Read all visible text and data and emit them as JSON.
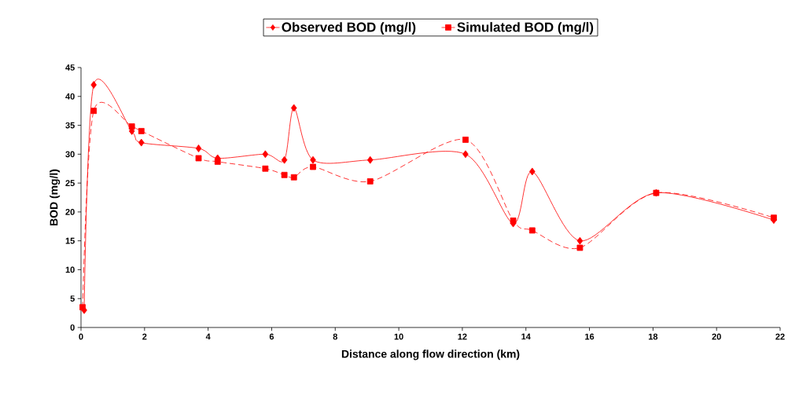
{
  "chart_data": {
    "type": "line",
    "xlabel": "Distance along flow direction (km)",
    "ylabel": "BOD (mg/l)",
    "xlim": [
      0,
      22
    ],
    "xticks": [
      0,
      2,
      4,
      6,
      8,
      10,
      12,
      14,
      16,
      18,
      20,
      22
    ],
    "ylim": [
      0,
      45
    ],
    "yticks": [
      0,
      5,
      10,
      15,
      20,
      25,
      30,
      35,
      40,
      45
    ],
    "legend": "top",
    "grid": false,
    "series": [
      {
        "name": "Observed BOD (mg/l)",
        "color": "#ff0000",
        "marker": "diamond",
        "line_style": "solid",
        "x": [
          0.1,
          0.4,
          1.6,
          1.9,
          3.7,
          4.3,
          5.8,
          6.4,
          6.7,
          7.3,
          9.1,
          12.1,
          13.6,
          14.2,
          15.7,
          18.1,
          21.8
        ],
        "values": [
          3,
          42,
          34,
          32,
          31,
          29.3,
          30,
          29,
          38,
          29,
          29,
          30,
          18,
          27,
          15,
          23.3,
          18.6
        ]
      },
      {
        "name": "Simulated BOD (mg/l)",
        "color": "#ff0000",
        "marker": "square",
        "line_style": "dashed",
        "x": [
          0.05,
          0.4,
          1.6,
          1.9,
          3.7,
          4.3,
          5.8,
          6.4,
          6.7,
          7.3,
          9.1,
          12.1,
          13.6,
          14.2,
          15.7,
          18.1,
          21.8
        ],
        "values": [
          3.5,
          37.5,
          34.8,
          34,
          29.3,
          28.7,
          27.5,
          26.4,
          26,
          27.8,
          25.3,
          32.5,
          18.5,
          16.8,
          13.8,
          23.3,
          19
        ]
      }
    ]
  }
}
